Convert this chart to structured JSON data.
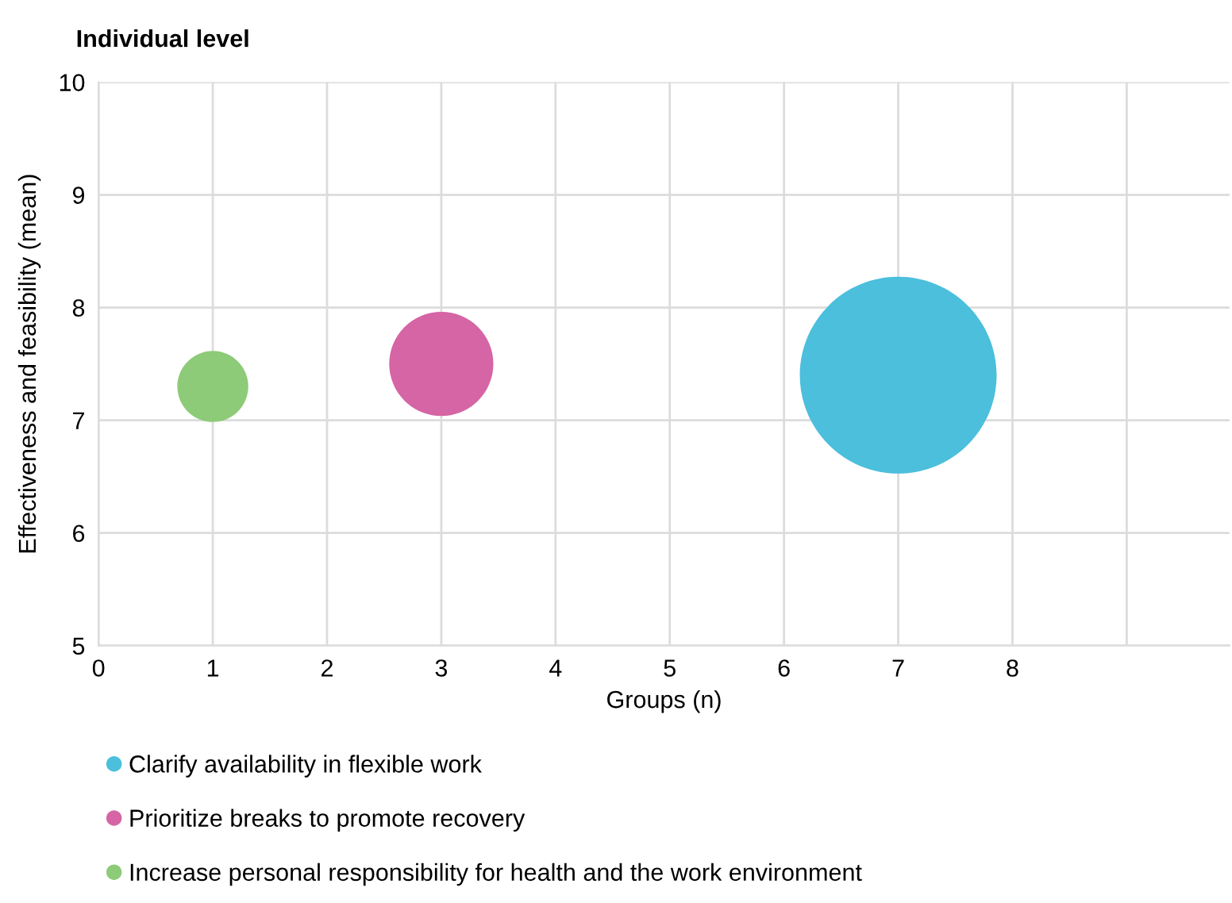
{
  "chart_data": {
    "type": "bubble",
    "title": "Individual level",
    "xlabel": "Groups (n)",
    "ylabel": "Effectiveness and feasibility (mean)",
    "xlim": [
      0,
      9.9
    ],
    "xticks": [
      0,
      1,
      2,
      3,
      4,
      5,
      6,
      7,
      8,
      {
        "value": 9,
        "label": null
      }
    ],
    "ylim": [
      5,
      10
    ],
    "yticks": [
      5,
      6,
      7,
      8,
      9,
      10
    ],
    "grid": true,
    "legend": "bottom",
    "marker": "circle",
    "series": [
      {
        "name": "Clarify availability in flexible work",
        "color": "#4bbfdc",
        "x": [
          7
        ],
        "values": [
          7.4
        ],
        "sizes": [
          1
        ]
      },
      {
        "name": "Prioritize breaks to promote recovery",
        "color": "#d565a5",
        "x": [
          3
        ],
        "values": [
          7.5
        ],
        "sizes": [
          0.28
        ]
      },
      {
        "name": "Increase personal responsibility for health and the work environment",
        "color": "#8dcb78",
        "x": [
          1
        ],
        "values": [
          7.3
        ],
        "sizes": [
          0.13
        ]
      }
    ]
  }
}
